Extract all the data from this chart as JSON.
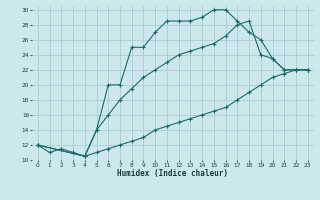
{
  "xlabel": "Humidex (Indice chaleur)",
  "background_color": "#cce8ec",
  "grid_color": "#aaccd4",
  "line_color": "#1a6b6b",
  "xlim": [
    -0.5,
    23.5
  ],
  "ylim": [
    10,
    30.5
  ],
  "xticks": [
    0,
    1,
    2,
    3,
    4,
    5,
    6,
    7,
    8,
    9,
    10,
    11,
    12,
    13,
    14,
    15,
    16,
    17,
    18,
    19,
    20,
    21,
    22,
    23
  ],
  "yticks": [
    10,
    12,
    14,
    16,
    18,
    20,
    22,
    24,
    26,
    28,
    30
  ],
  "line1_x": [
    0,
    1,
    2,
    3,
    4,
    5,
    6,
    7,
    8,
    9,
    10,
    11,
    12,
    13,
    14,
    15,
    16,
    17,
    18,
    19,
    20,
    21,
    22,
    23
  ],
  "line1_y": [
    12,
    11,
    11.5,
    11,
    10.5,
    14,
    20,
    20,
    25,
    25,
    27,
    28.5,
    28.5,
    28.5,
    29,
    30,
    30,
    28.5,
    27,
    26,
    23.5,
    22,
    22,
    22
  ],
  "line2_x": [
    0,
    4,
    5,
    6,
    7,
    8,
    9,
    10,
    11,
    12,
    13,
    14,
    15,
    16,
    17,
    18,
    19,
    20,
    21,
    22,
    23
  ],
  "line2_y": [
    12,
    10.5,
    14,
    16,
    18,
    19.5,
    21,
    22,
    23,
    24,
    24.5,
    25,
    25.5,
    26.5,
    28,
    28.5,
    24,
    23.5,
    22,
    22,
    22
  ],
  "line3_x": [
    0,
    4,
    5,
    6,
    7,
    8,
    9,
    10,
    11,
    12,
    13,
    14,
    15,
    16,
    17,
    18,
    19,
    20,
    21,
    22,
    23
  ],
  "line3_y": [
    12,
    10.5,
    11,
    11.5,
    12,
    12.5,
    13,
    14,
    14.5,
    15,
    15.5,
    16,
    16.5,
    17,
    18,
    19,
    20,
    21,
    21.5,
    22,
    22
  ]
}
